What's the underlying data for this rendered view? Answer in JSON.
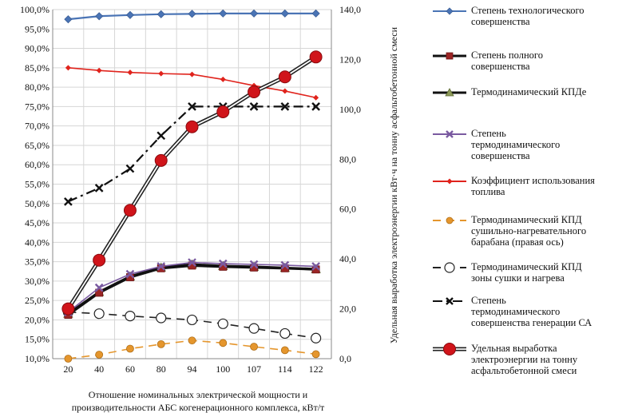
{
  "chart_data": {
    "type": "line",
    "categories": [
      "20",
      "40",
      "60",
      "80",
      "94",
      "100",
      "107",
      "114",
      "122"
    ],
    "left_axis": {
      "ticks": [
        "10,0%",
        "15,0%",
        "20,0%",
        "25,0%",
        "30,0%",
        "35,0%",
        "40,0%",
        "45,0%",
        "50,0%",
        "55,0%",
        "60,0%",
        "65,0%",
        "70,0%",
        "75,0%",
        "80,0%",
        "85,0%",
        "90,0%",
        "95,0%",
        "100,0%"
      ],
      "ylim": [
        10,
        100
      ],
      "unit": "%"
    },
    "right_axis": {
      "label": "Удельная выработка электроэнергии кВт·ч на тонну асфальтобетонной смеси",
      "ticks": [
        "0,0",
        "20,0",
        "40,0",
        "60,0",
        "80,0",
        "100,0",
        "120,0",
        "140,0"
      ],
      "ylim": [
        0,
        140
      ]
    },
    "xlabel_lines": [
      "Отношение номинальных электрической мощности и",
      "производительности АБС когенерационного комплекса, кВт/т"
    ],
    "series": [
      {
        "name": "Степень технологического\nсовершенства",
        "axis": "left",
        "color": "#4a74b5",
        "marker": "diamond",
        "values": [
          97.5,
          98.3,
          98.6,
          98.8,
          98.9,
          99.0,
          99.0,
          99.0,
          99.0
        ]
      },
      {
        "name": "Степень полного\nсовершенства",
        "axis": "left",
        "color": "#9c2525",
        "marker": "square",
        "values": [
          21.3,
          27.0,
          31.0,
          33.3,
          34.0,
          33.7,
          33.5,
          33.3,
          33.0
        ]
      },
      {
        "name": "Термодинамический КПДе",
        "axis": "left",
        "color": "#8e9a5a",
        "marker": "triangle",
        "values": [
          21.6,
          27.2,
          31.2,
          33.5,
          34.3,
          33.9,
          33.7,
          33.4,
          33.1
        ]
      },
      {
        "name": "Степень\nтермодинамического\nсовершенства",
        "axis": "left",
        "color": "#7a5aa0",
        "marker": "x",
        "values": [
          22.0,
          28.3,
          31.8,
          33.8,
          34.8,
          34.5,
          34.3,
          34.1,
          33.8
        ]
      },
      {
        "name": "Коэффициент использования\nтоплива",
        "axis": "left",
        "color": "#e0231c",
        "marker": "small-diamond",
        "values": [
          85.0,
          84.3,
          83.8,
          83.5,
          83.3,
          82.0,
          80.4,
          79.0,
          77.3
        ]
      },
      {
        "name": "Термодинамический КПД\nсушильно-нагревательного\nбарабана (правая ось)",
        "axis": "right",
        "color": "#e5962d",
        "marker": "circle",
        "dash": "10,7",
        "values": [
          0.0,
          1.6,
          4.0,
          5.8,
          7.3,
          6.3,
          4.8,
          3.4,
          1.8
        ]
      },
      {
        "name": "Термодинамический КПД\nзоны сушки и нагрева",
        "axis": "left",
        "color": "#222222",
        "marker": "open-circle",
        "dash": "10,7",
        "values": [
          22.0,
          21.6,
          21.0,
          20.5,
          20.0,
          19.0,
          17.8,
          16.5,
          15.3
        ]
      },
      {
        "name": "Степень\nтермодинамического\nсовершенства генерации СА",
        "axis": "left",
        "color": "#111111",
        "marker": "x",
        "dash": "12,5,3,5",
        "values": [
          50.5,
          54.0,
          59.0,
          67.5,
          75.0,
          75.0,
          75.0,
          75.0,
          75.0
        ]
      },
      {
        "name": "Удельная выработка\nэлектроэнергии на тонну\nасфальтобетонной смеси",
        "axis": "right",
        "color": "#d0141a",
        "marker": "big-circle",
        "double": true,
        "values": [
          20.0,
          39.5,
          59.5,
          79.5,
          93.0,
          99.0,
          107.0,
          113.0,
          121.0
        ]
      }
    ]
  }
}
